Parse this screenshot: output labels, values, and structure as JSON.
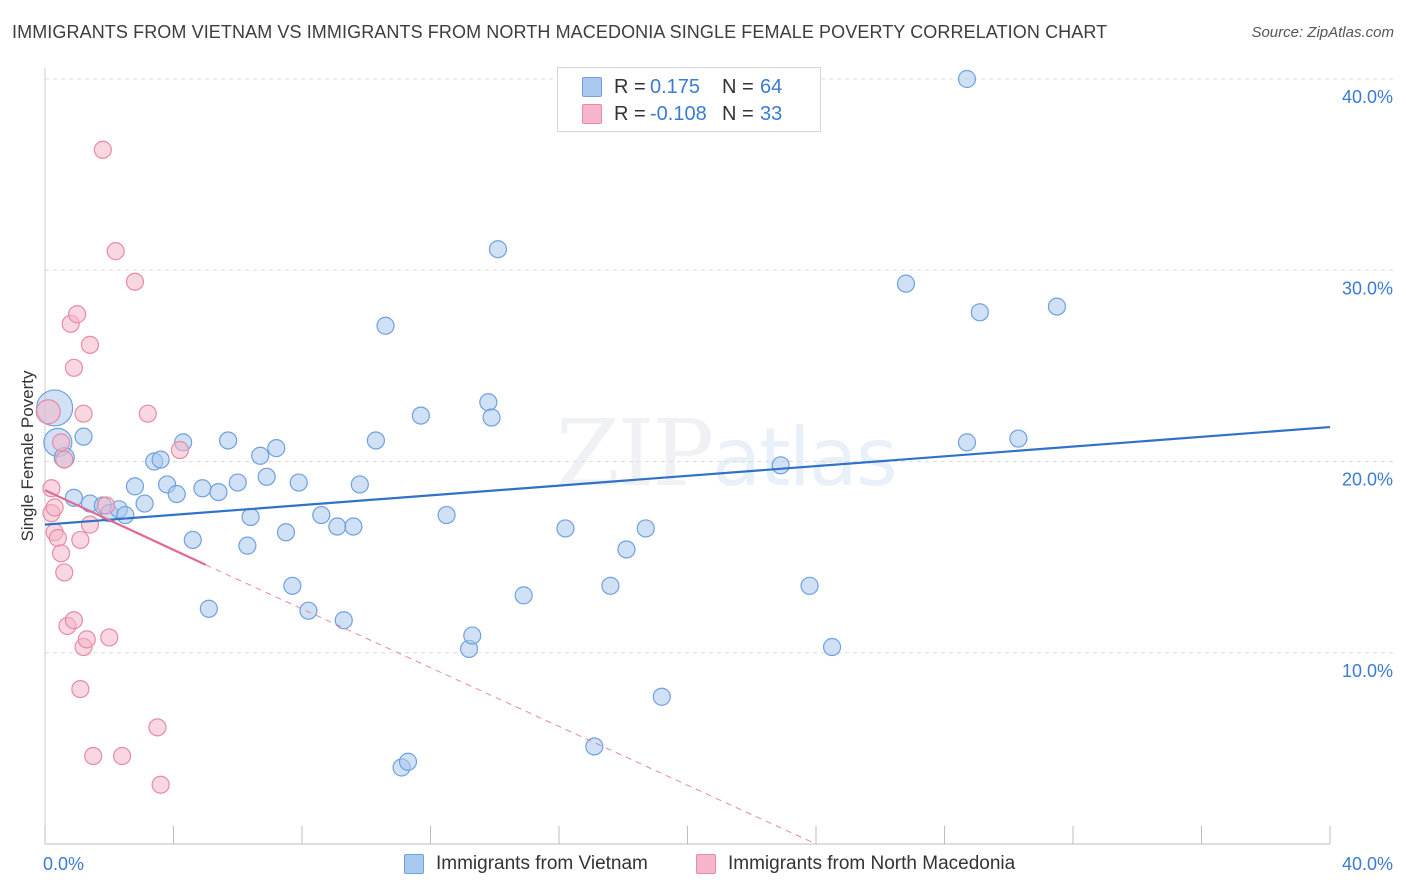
{
  "header": {
    "title": "IMMIGRANTS FROM VIETNAM VS IMMIGRANTS FROM NORTH MACEDONIA SINGLE FEMALE POVERTY CORRELATION CHART",
    "source": "Source: ZipAtlas.com"
  },
  "watermark": {
    "zip": "ZIP",
    "atlas": "atlas"
  },
  "stats": [
    {
      "r_label": "R =",
      "r_value": "0.175",
      "n_label": "N =",
      "n_value": "64",
      "color": "#a9c8ee"
    },
    {
      "r_label": "R =",
      "r_value": "-0.108",
      "n_label": "N =",
      "n_value": "33",
      "color": "#f4b6c8"
    }
  ],
  "legend": [
    {
      "label": "Immigrants from Vietnam",
      "color": "#a9c8ee"
    },
    {
      "label": "Immigrants from North Macedonia",
      "color": "#f4b6c8"
    }
  ],
  "chart_data": {
    "type": "scatter",
    "title": "IMMIGRANTS FROM VIETNAM VS IMMIGRANTS FROM NORTH MACEDONIA SINGLE FEMALE POVERTY CORRELATION CHART",
    "xlabel": "",
    "ylabel": "Single Female Poverty",
    "xlim": [
      0,
      40
    ],
    "ylim": [
      0,
      40
    ],
    "x_tick_labels": [
      "0.0%",
      "40.0%"
    ],
    "y_ticks": [
      10,
      20,
      30,
      40
    ],
    "y_tick_labels": [
      "10.0%",
      "20.0%",
      "30.0%",
      "40.0%"
    ],
    "grid": "horizontal dashed",
    "legend_position": "bottom",
    "series": [
      {
        "name": "Immigrants from Vietnam",
        "color": "#a9c8ee",
        "edge_color": "#6fa1de",
        "trend": {
          "x": [
            0,
            40
          ],
          "y": [
            16.7,
            21.8
          ],
          "color": "#2f72c7"
        },
        "points": [
          {
            "x": 0.3,
            "y": 22.8,
            "size": 18
          },
          {
            "x": 0.4,
            "y": 21.0,
            "size": 14
          },
          {
            "x": 0.6,
            "y": 20.2,
            "size": 10
          },
          {
            "x": 0.9,
            "y": 18.1
          },
          {
            "x": 1.2,
            "y": 21.3
          },
          {
            "x": 1.4,
            "y": 17.8
          },
          {
            "x": 1.8,
            "y": 17.7
          },
          {
            "x": 2.0,
            "y": 17.3
          },
          {
            "x": 2.3,
            "y": 17.5
          },
          {
            "x": 2.5,
            "y": 17.2
          },
          {
            "x": 2.8,
            "y": 18.7
          },
          {
            "x": 3.1,
            "y": 17.8
          },
          {
            "x": 3.4,
            "y": 20.0
          },
          {
            "x": 3.6,
            "y": 20.1
          },
          {
            "x": 3.8,
            "y": 18.8
          },
          {
            "x": 4.1,
            "y": 18.3
          },
          {
            "x": 4.3,
            "y": 21.0
          },
          {
            "x": 4.6,
            "y": 15.9
          },
          {
            "x": 4.9,
            "y": 18.6
          },
          {
            "x": 5.1,
            "y": 12.3
          },
          {
            "x": 5.4,
            "y": 18.4
          },
          {
            "x": 5.7,
            "y": 21.1
          },
          {
            "x": 6.0,
            "y": 18.9
          },
          {
            "x": 6.3,
            "y": 15.6
          },
          {
            "x": 6.4,
            "y": 17.1
          },
          {
            "x": 6.7,
            "y": 20.3
          },
          {
            "x": 6.9,
            "y": 19.2
          },
          {
            "x": 7.2,
            "y": 20.7
          },
          {
            "x": 7.5,
            "y": 16.3
          },
          {
            "x": 7.7,
            "y": 13.5
          },
          {
            "x": 7.9,
            "y": 18.9
          },
          {
            "x": 8.2,
            "y": 12.2
          },
          {
            "x": 8.6,
            "y": 17.2
          },
          {
            "x": 9.1,
            "y": 16.6
          },
          {
            "x": 9.3,
            "y": 11.7
          },
          {
            "x": 9.6,
            "y": 16.6
          },
          {
            "x": 9.8,
            "y": 18.8
          },
          {
            "x": 10.3,
            "y": 21.1
          },
          {
            "x": 10.6,
            "y": 27.1
          },
          {
            "x": 11.1,
            "y": 4.0
          },
          {
            "x": 11.3,
            "y": 4.3
          },
          {
            "x": 11.7,
            "y": 22.4
          },
          {
            "x": 12.5,
            "y": 17.2
          },
          {
            "x": 13.2,
            "y": 10.2
          },
          {
            "x": 13.3,
            "y": 10.9
          },
          {
            "x": 13.8,
            "y": 23.1
          },
          {
            "x": 13.9,
            "y": 22.3
          },
          {
            "x": 14.1,
            "y": 31.1
          },
          {
            "x": 14.9,
            "y": 13.0
          },
          {
            "x": 16.2,
            "y": 16.5
          },
          {
            "x": 17.1,
            "y": 5.1
          },
          {
            "x": 17.6,
            "y": 13.5
          },
          {
            "x": 18.1,
            "y": 15.4
          },
          {
            "x": 19.2,
            "y": 7.7
          },
          {
            "x": 18.7,
            "y": 16.5
          },
          {
            "x": 22.9,
            "y": 19.8
          },
          {
            "x": 23.8,
            "y": 13.5
          },
          {
            "x": 24.5,
            "y": 10.3
          },
          {
            "x": 26.8,
            "y": 29.3
          },
          {
            "x": 28.7,
            "y": 21.0
          },
          {
            "x": 28.7,
            "y": 40.0
          },
          {
            "x": 29.1,
            "y": 27.8
          },
          {
            "x": 30.3,
            "y": 21.2
          },
          {
            "x": 31.5,
            "y": 28.1
          }
        ]
      },
      {
        "name": "Immigrants from North Macedonia",
        "color": "#f4b6c8",
        "edge_color": "#e88aa6",
        "trend": {
          "x": [
            0,
            5.0
          ],
          "y": [
            18.5,
            14.6
          ],
          "color": "#e06a92",
          "dashed_to": {
            "x": 24.0,
            "y": 0.0
          }
        },
        "points": [
          {
            "x": 0.1,
            "y": 22.6,
            "size": 12
          },
          {
            "x": 0.2,
            "y": 18.6
          },
          {
            "x": 0.2,
            "y": 17.3
          },
          {
            "x": 0.3,
            "y": 17.6
          },
          {
            "x": 0.3,
            "y": 16.3
          },
          {
            "x": 0.4,
            "y": 16.0
          },
          {
            "x": 0.5,
            "y": 15.2
          },
          {
            "x": 0.6,
            "y": 14.2
          },
          {
            "x": 0.6,
            "y": 20.1
          },
          {
            "x": 0.7,
            "y": 11.4
          },
          {
            "x": 0.8,
            "y": 27.2
          },
          {
            "x": 0.9,
            "y": 11.7
          },
          {
            "x": 0.9,
            "y": 24.9
          },
          {
            "x": 1.0,
            "y": 27.7
          },
          {
            "x": 1.1,
            "y": 15.9
          },
          {
            "x": 1.1,
            "y": 8.1
          },
          {
            "x": 1.2,
            "y": 22.5
          },
          {
            "x": 1.2,
            "y": 10.3
          },
          {
            "x": 1.3,
            "y": 10.7
          },
          {
            "x": 1.4,
            "y": 26.1
          },
          {
            "x": 1.4,
            "y": 16.7
          },
          {
            "x": 1.5,
            "y": 4.6
          },
          {
            "x": 1.8,
            "y": 36.3
          },
          {
            "x": 1.9,
            "y": 17.7
          },
          {
            "x": 2.0,
            "y": 10.8
          },
          {
            "x": 2.2,
            "y": 31.0
          },
          {
            "x": 2.4,
            "y": 4.6
          },
          {
            "x": 2.8,
            "y": 29.4
          },
          {
            "x": 3.2,
            "y": 22.5
          },
          {
            "x": 3.5,
            "y": 6.1
          },
          {
            "x": 3.6,
            "y": 3.1
          },
          {
            "x": 4.2,
            "y": 20.6
          },
          {
            "x": 0.5,
            "y": 21.0
          }
        ]
      }
    ]
  }
}
